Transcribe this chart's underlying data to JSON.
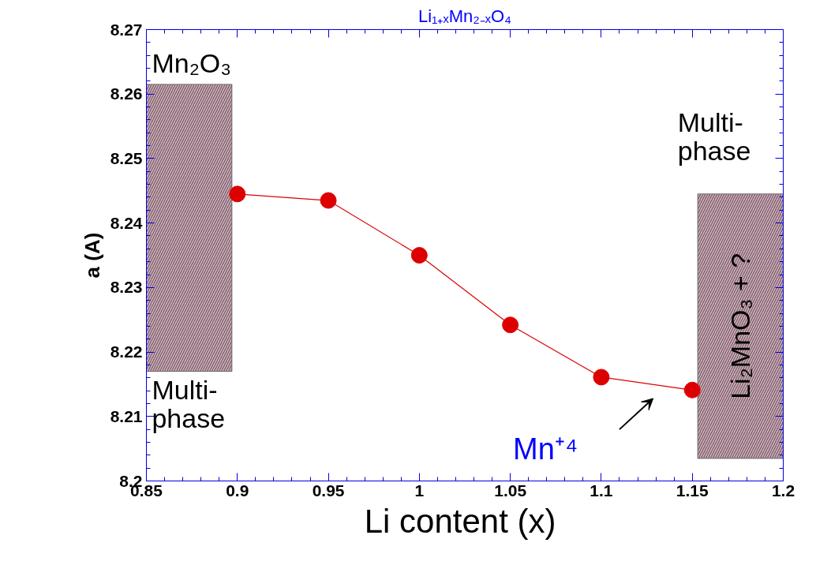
{
  "chart_data": {
    "type": "line",
    "title": "Li₁₊ₓMn₂₋ₓO₄",
    "xlabel": "Li content  (x)",
    "ylabel": "a (A)",
    "x": [
      0.9,
      0.95,
      1.0,
      1.05,
      1.1,
      1.15
    ],
    "series": [
      {
        "color": "#dd0000",
        "values": [
          8.2445,
          8.2435,
          8.235,
          8.2242,
          8.2161,
          8.2141
        ]
      },
      {
        "type": "bar",
        "color": "#e8b4c8",
        "x": [
          0.8735,
          1.1765
        ],
        "base": [
          8.217,
          8.2035
        ],
        "values": [
          0.0445,
          0.041
        ]
      }
    ],
    "annotations": [
      "Mn₂O₃",
      "Multi-\nphase",
      "Multi-\nphase",
      "Li₂MnO₃ + ?",
      "Mn⁺⁴"
    ],
    "xlim": [
      0.85,
      1.2
    ],
    "xticks": [
      0.85,
      0.9,
      0.95,
      1,
      1.05,
      1.1,
      1.15,
      1.2
    ],
    "ylim": [
      8.2,
      8.27
    ],
    "yticks": [
      8.2,
      8.21,
      8.22,
      8.23,
      8.24,
      8.25,
      8.26,
      8.27
    ],
    "marker": "circle",
    "line_style": "solid",
    "grid": false
  }
}
